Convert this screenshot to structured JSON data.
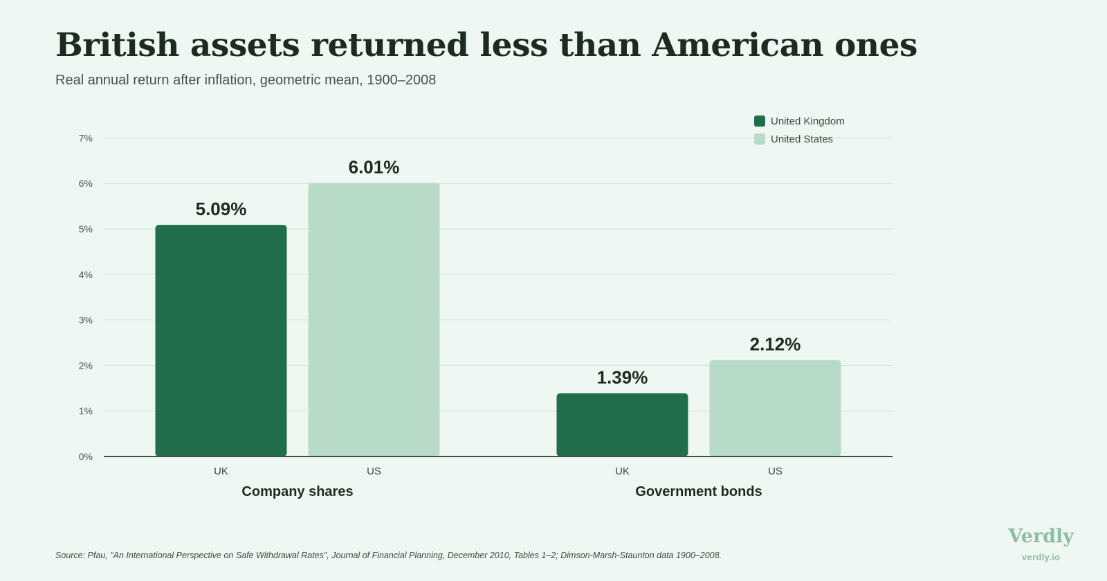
{
  "header": {
    "title": "British assets returned less than American ones",
    "subtitle": "Real annual return after inflation, geometric mean, 1900–2008"
  },
  "chart_data": {
    "type": "bar",
    "groups": [
      "Company shares",
      "Government bonds"
    ],
    "categories": [
      "UK",
      "US"
    ],
    "series": [
      {
        "name": "United Kingdom",
        "color": "#216e4a",
        "values": [
          5.09,
          1.39
        ],
        "labels": [
          "5.09%",
          "1.39%"
        ]
      },
      {
        "name": "United States",
        "color": "#b8dbc8",
        "values": [
          6.01,
          2.12
        ],
        "labels": [
          "6.01%",
          "2.12%"
        ]
      }
    ],
    "ylim": [
      0,
      7
    ],
    "yticks": [
      "0%",
      "1%",
      "2%",
      "3%",
      "4%",
      "5%",
      "6%",
      "7%"
    ],
    "grid": true,
    "legend_position": "top-right"
  },
  "footer": {
    "source": "Source: Pfau, \"An International Perspective on Safe Withdrawal Rates\", Journal of Financial Planning, December 2010, Tables 1–2; Dimson-Marsh-Staunton data 1900–2008.",
    "brand_name": "Verdly",
    "brand_url": "verdly.io"
  }
}
